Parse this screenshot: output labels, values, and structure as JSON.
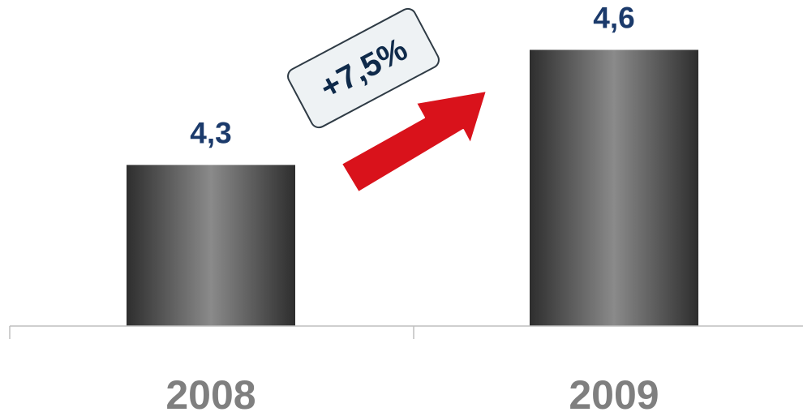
{
  "chart_data": {
    "type": "bar",
    "title": "",
    "xlabel": "",
    "ylabel": "",
    "categories": [
      "2008",
      "2009"
    ],
    "values": [
      4.3,
      4.6
    ],
    "value_labels": [
      "4,3",
      "4,6"
    ],
    "ylim": [
      3.88,
      4.73
    ],
    "grid": false,
    "legend": "none",
    "annotation": {
      "text": "+7,5%",
      "kind": "growth-arrow"
    }
  },
  "colors": {
    "bar_dark": "#2f2f2f",
    "bar_light": "#8a8a8a",
    "value_label": "#1b3a6b",
    "category_label": "#7f7f7f",
    "axis": "#bfbfbf",
    "arrow": "#d9121b",
    "arrow_outline": "#ffffff",
    "badge_fill": "#eef2f4",
    "badge_stroke": "#2f3b45",
    "badge_text": "#0f2a4a"
  }
}
